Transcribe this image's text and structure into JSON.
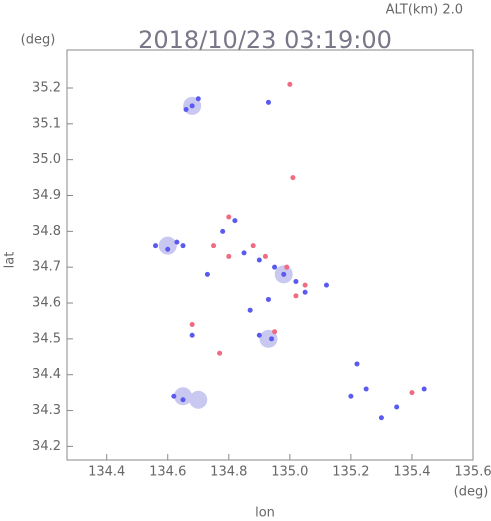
{
  "chart_data": {
    "type": "scatter",
    "title": "2018/10/23 03:19:00",
    "subtitle": "ALT(km) 2.0",
    "y_unit": "(deg)",
    "x_unit": "(deg)",
    "xlabel": "lon",
    "ylabel": "lat",
    "xlim": [
      134.27,
      135.6
    ],
    "ylim": [
      34.162,
      35.306
    ],
    "xticks": [
      134.4,
      134.6,
      134.8,
      {
        "value": 135,
        "label": "135.0"
      },
      135.2,
      135.4,
      135.6
    ],
    "yticks": [
      34.2,
      34.3,
      34.4,
      34.5,
      34.6,
      34.7,
      34.8,
      34.9,
      {
        "value": 35,
        "label": "35.0"
      },
      35.1,
      35.2
    ],
    "series": [
      {
        "color": "#c8c8f0",
        "marker_size": 9,
        "x": [
          134.65,
          134.7,
          134.93,
          134.68,
          134.6,
          134.98
        ],
        "y": [
          34.34,
          34.33,
          34.5,
          35.15,
          34.76,
          34.68
        ]
      },
      {
        "color": "#5a5af0",
        "marker_size": 2.5,
        "x": [
          134.68,
          134.66,
          134.7,
          134.93,
          134.56,
          134.6,
          134.63,
          134.65,
          134.78,
          134.82,
          134.85,
          134.9,
          134.95,
          134.98,
          135.02,
          135.05,
          134.93,
          134.9,
          134.94,
          134.68,
          134.62,
          134.65,
          135.22,
          135.2,
          135.25,
          135.3,
          135.35,
          135.44,
          134.73,
          134.87,
          135.12
        ],
        "y": [
          35.15,
          35.14,
          35.17,
          35.16,
          34.76,
          34.75,
          34.77,
          34.76,
          34.8,
          34.83,
          34.74,
          34.72,
          34.7,
          34.68,
          34.66,
          34.63,
          34.61,
          34.51,
          34.5,
          34.51,
          34.34,
          34.33,
          34.43,
          34.34,
          34.36,
          34.28,
          34.31,
          34.36,
          34.68,
          34.58,
          34.65
        ]
      },
      {
        "color": "#f06a80",
        "marker_size": 2.5,
        "x": [
          135.0,
          135.01,
          134.8,
          134.8,
          134.88,
          134.92,
          134.99,
          135.05,
          135.02,
          134.77,
          134.68,
          134.95,
          135.4,
          134.75
        ],
        "y": [
          35.21,
          34.95,
          34.84,
          34.73,
          34.76,
          34.73,
          34.7,
          34.65,
          34.62,
          34.46,
          34.54,
          34.52,
          34.35,
          34.76
        ]
      }
    ]
  }
}
